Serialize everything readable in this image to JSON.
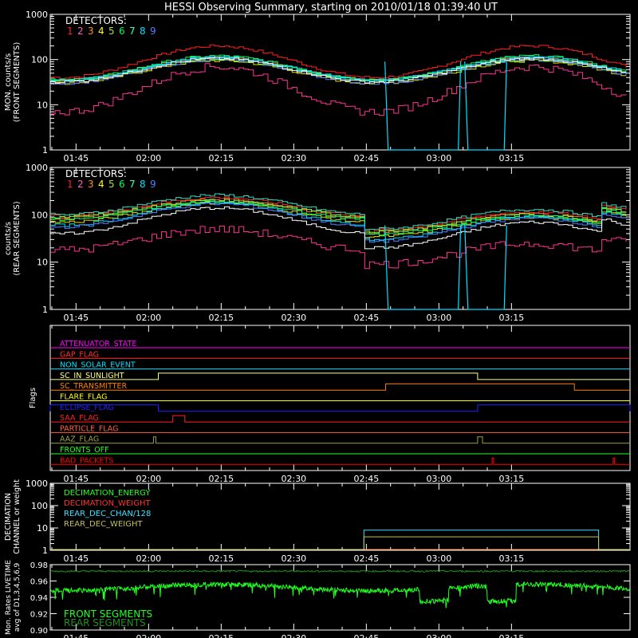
{
  "title": "HESSI Observing Summary, starting on 2010/01/18 01:39:40 UT",
  "time_ticks": [
    "01:45",
    "02:00",
    "02:15",
    "02:30",
    "02:45",
    "03:00",
    "03:15"
  ],
  "colors": {
    "axes": "#ffffff",
    "det": [
      "#ff2020",
      "#ff60c0",
      "#ff9020",
      "#ffff00",
      "#a0e040",
      "#00ff60",
      "#40ffc0",
      "#00e0ff",
      "#5080ff"
    ],
    "det_front_plotted": [
      "#ff2020",
      "#ff8030",
      "#e0e000",
      "#80ff40",
      "#00ff60",
      "#30e0c0",
      "#00e0ff",
      "#5080ff",
      "#ffffff",
      "#ff3090"
    ],
    "front_seg": "#20ff20",
    "rear_seg": "#209020"
  },
  "chart_data": [
    {
      "type": "line",
      "name": "front",
      "ylabel_lines": [
        "MON. counts/s",
        "(FRONT SEGMENTS)"
      ],
      "yscale": "log",
      "ylim": [
        1,
        1000
      ],
      "yticks": [
        "1",
        "10",
        "100",
        "1000"
      ],
      "legend_title": "DETECTORS:",
      "legend_items": [
        "1",
        "2",
        "3",
        "4",
        "5",
        "6",
        "7",
        "8",
        "9"
      ],
      "xlim": [
        99.67,
        219.5
      ],
      "series_shape": {
        "peaks_min": [
          134,
          199
        ],
        "peak_values": [
          200,
          110,
          95,
          100,
          120,
          115,
          110,
          100,
          105,
          70
        ],
        "trough_values": [
          40,
          35,
          30,
          35,
          35,
          35,
          35,
          30,
          32,
          7
        ]
      },
      "dropouts": [
        {
          "series": 7,
          "x_from": 169.5,
          "x_to": 184,
          "value": 1
        },
        {
          "series": 7,
          "x_from": 186,
          "x_to": 193.5,
          "value": 1
        }
      ]
    },
    {
      "type": "line",
      "name": "rear",
      "ylabel_lines": [
        "counts/s",
        "(REAR SEGMENTS)"
      ],
      "yscale": "log",
      "ylim": [
        1,
        1000
      ],
      "yticks": [
        "1",
        "10",
        "100",
        "1000"
      ],
      "legend_title": "DETECTORS:",
      "legend_items": [
        "1",
        "2",
        "3",
        "4",
        "5",
        "6",
        "7",
        "8",
        "9"
      ],
      "xlim": [
        99.67,
        219.5
      ],
      "attenuator_period_min": [
        164.5,
        213
      ]
    },
    {
      "type": "line",
      "name": "flags",
      "ylabel": "Flags",
      "xlim": [
        99.67,
        219.5
      ],
      "flags": [
        {
          "label": "ATTENUATOR_STATE",
          "color": "#ff00ff",
          "segments": []
        },
        {
          "label": "GAP_FLAG",
          "color": "#ff3030",
          "segments": []
        },
        {
          "label": "NON_SOLAR_EVENT",
          "color": "#00e0ff",
          "segments": []
        },
        {
          "label": "SC_IN_SUNLIGHT",
          "color": "#ffff80",
          "segments": [
            [
              122,
              188
            ]
          ]
        },
        {
          "label": "SC_TRANSMITTER",
          "color": "#ff8000",
          "segments": [
            [
              169,
              208
            ]
          ]
        },
        {
          "label": "FLARE_FLAG",
          "color": "#ffff00",
          "segments": []
        },
        {
          "label": "ECLIPSE_FLAG",
          "color": "#2020ff",
          "segments": [
            [
              99.67,
              122
            ],
            [
              188,
              219.5
            ]
          ]
        },
        {
          "label": "SAA_FLAG",
          "color": "#ff2020",
          "segments": [
            [
              125,
              127.5
            ]
          ]
        },
        {
          "label": "PARTICLE_FLAG",
          "color": "#ff6040",
          "segments": []
        },
        {
          "label": "AAZ_FLAG",
          "color": "#a0a040",
          "segments": [
            [
              121,
              121.5
            ],
            [
              188,
              189
            ]
          ]
        },
        {
          "label": "FRONTS_OFF",
          "color": "#20ff20",
          "segments": []
        },
        {
          "label": "BAD_PACKETS",
          "color": "#ff0000",
          "segments": [
            [
              191,
              191.3
            ],
            [
              216,
              216.3
            ]
          ]
        }
      ]
    },
    {
      "type": "line",
      "name": "decimation",
      "ylabel_lines": [
        "DECIMATION",
        "CHANNEL or weight"
      ],
      "yscale": "log",
      "ylim": [
        1,
        1000
      ],
      "yticks": [
        "1",
        "10",
        "100",
        "1000"
      ],
      "xlim": [
        99.67,
        219.5
      ],
      "legend_items": [
        {
          "label": "DECIMATION_ENERGY",
          "color": "#20ff20"
        },
        {
          "label": "DECIMATION_WEIGHT",
          "color": "#ff3030"
        },
        {
          "label": "REAR_DEC_CHAN/128",
          "color": "#40e0ff"
        },
        {
          "label": "REAR_DEC_WEIGHT",
          "color": "#c0c060"
        }
      ],
      "series": [
        {
          "name": "REAR_DEC_CHAN/128",
          "x": [
            99.67,
            164.5,
            164.5,
            213,
            213,
            219.5
          ],
          "y": [
            1,
            1,
            8,
            8,
            1,
            1
          ]
        },
        {
          "name": "REAR_DEC_WEIGHT",
          "x": [
            99.67,
            164.5,
            164.5,
            213,
            213,
            219.5
          ],
          "y": [
            1,
            1,
            4,
            4,
            1,
            1
          ]
        }
      ]
    },
    {
      "type": "line",
      "name": "livetime",
      "ylabel_lines": [
        "Mon. Rates LIVETIME",
        "avg of D1,3,4,5,6,9"
      ],
      "ylim": [
        0.9,
        0.98
      ],
      "yticks": [
        "0.90",
        "0.92",
        "0.94",
        "0.96",
        "0.98"
      ],
      "xlim": [
        99.67,
        219.5
      ],
      "legend_items": [
        {
          "label": "FRONT SEGMENTS",
          "color": "#20ff20"
        },
        {
          "label": "REAR SEGMENTS",
          "color": "#209020"
        }
      ],
      "series": [
        {
          "name": "REAR SEGMENTS",
          "level": 0.972
        },
        {
          "name": "FRONT SEGMENTS",
          "level": 0.955
        }
      ]
    }
  ]
}
